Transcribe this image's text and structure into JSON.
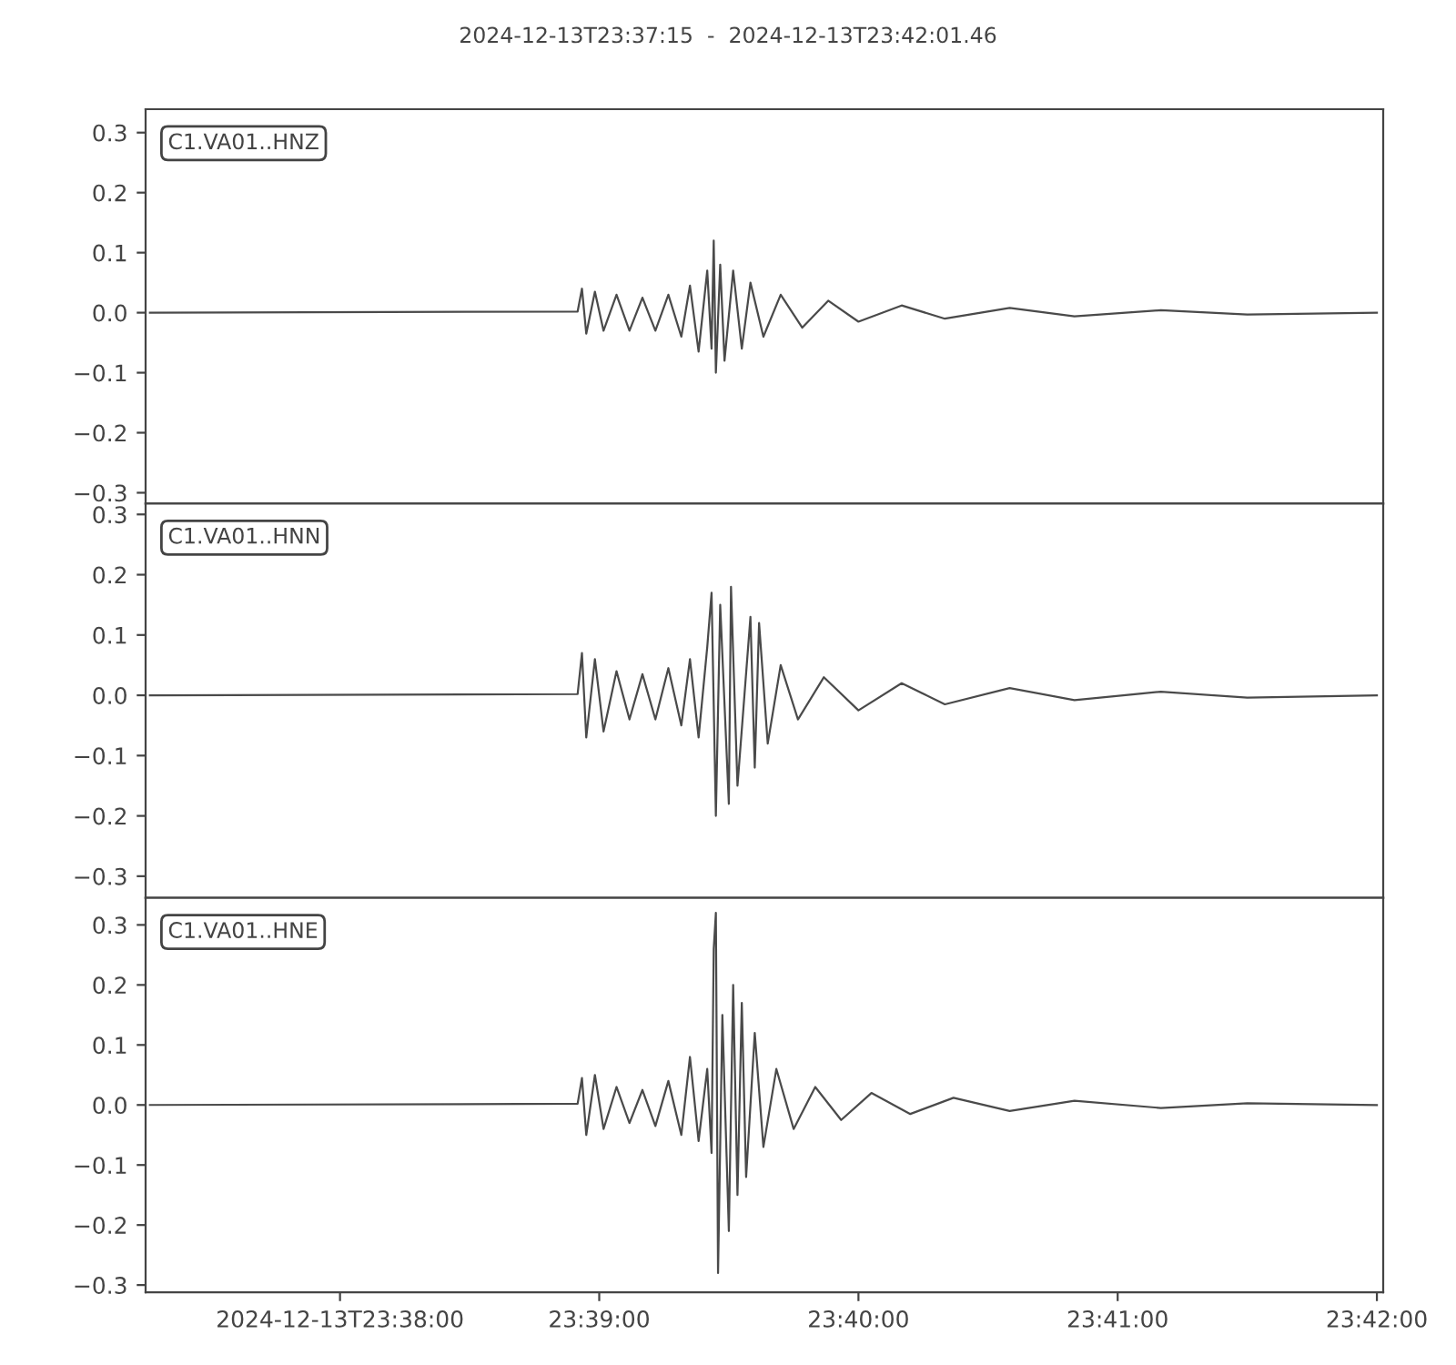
{
  "chart_data": [
    {
      "type": "line",
      "title": "2024-12-13T23:37:15  -  2024-12-13T23:42:01.46",
      "annotations": [
        "C1.VA01..HNZ"
      ],
      "tick_labels": "y",
      "grid": false,
      "legend": false,
      "xlim": [
        "2024-12-13T23:37:15",
        "2024-12-13T23:42:01.46"
      ],
      "ylim": [
        -0.318,
        0.339
      ],
      "yticks": [
        {
          "value": -0.3,
          "label": "−0.3"
        },
        {
          "value": -0.2,
          "label": "−0.2"
        },
        {
          "value": -0.1,
          "label": "−0.1"
        },
        {
          "value": 0,
          "label": "0.0"
        },
        0.1,
        0.2,
        0.3
      ],
      "series": [
        {
          "color": "#4a4a4a",
          "x": [
            "2024-12-13T23:37:16",
            "2024-12-13T23:38:55",
            "2024-12-13T23:38:56",
            "2024-12-13T23:38:57",
            "2024-12-13T23:38:59",
            "2024-12-13T23:39:01",
            "2024-12-13T23:39:04",
            "2024-12-13T23:39:07",
            "2024-12-13T23:39:10",
            "2024-12-13T23:39:13",
            "2024-12-13T23:39:16",
            "2024-12-13T23:39:19",
            "2024-12-13T23:39:21",
            "2024-12-13T23:39:23",
            "2024-12-13T23:39:25",
            "2024-12-13T23:39:26",
            "2024-12-13T23:39:26.5",
            "2024-12-13T23:39:27",
            "2024-12-13T23:39:28",
            "2024-12-13T23:39:29",
            "2024-12-13T23:39:31",
            "2024-12-13T23:39:33",
            "2024-12-13T23:39:35",
            "2024-12-13T23:39:38",
            "2024-12-13T23:39:42",
            "2024-12-13T23:39:47",
            "2024-12-13T23:39:53",
            "2024-12-13T23:40:00",
            "2024-12-13T23:40:10",
            "2024-12-13T23:40:20",
            "2024-12-13T23:40:35",
            "2024-12-13T23:40:50",
            "2024-12-13T23:41:10",
            "2024-12-13T23:41:30",
            "2024-12-13T23:42:00"
          ],
          "values": [
            0.0,
            0.002,
            0.04,
            -0.035,
            0.035,
            -0.03,
            0.03,
            -0.03,
            0.025,
            -0.03,
            0.03,
            -0.04,
            0.045,
            -0.065,
            0.07,
            -0.06,
            0.12,
            -0.1,
            0.08,
            -0.08,
            0.07,
            -0.06,
            0.05,
            -0.04,
            0.03,
            -0.025,
            0.02,
            -0.015,
            0.012,
            -0.01,
            0.008,
            -0.006,
            0.004,
            -0.003,
            0.0
          ]
        }
      ]
    },
    {
      "type": "line",
      "annotations": [
        "C1.VA01..HNN"
      ],
      "tick_labels": "y",
      "grid": false,
      "legend": false,
      "xlim": [
        "2024-12-13T23:37:15",
        "2024-12-13T23:42:01.46"
      ],
      "ylim": [
        -0.336,
        0.318
      ],
      "yticks": [
        {
          "value": -0.3,
          "label": "−0.3"
        },
        {
          "value": -0.2,
          "label": "−0.2"
        },
        {
          "value": -0.1,
          "label": "−0.1"
        },
        {
          "value": 0,
          "label": "0.0"
        },
        0.1,
        0.2,
        0.3
      ],
      "series": [
        {
          "color": "#4a4a4a",
          "x": [
            "2024-12-13T23:37:16",
            "2024-12-13T23:38:55",
            "2024-12-13T23:38:56",
            "2024-12-13T23:38:57",
            "2024-12-13T23:38:59",
            "2024-12-13T23:39:01",
            "2024-12-13T23:39:04",
            "2024-12-13T23:39:07",
            "2024-12-13T23:39:10",
            "2024-12-13T23:39:13",
            "2024-12-13T23:39:16",
            "2024-12-13T23:39:19",
            "2024-12-13T23:39:21",
            "2024-12-13T23:39:23",
            "2024-12-13T23:39:25",
            "2024-12-13T23:39:26",
            "2024-12-13T23:39:27",
            "2024-12-13T23:39:28",
            "2024-12-13T23:39:30",
            "2024-12-13T23:39:30.5",
            "2024-12-13T23:39:32",
            "2024-12-13T23:39:35",
            "2024-12-13T23:39:36",
            "2024-12-13T23:39:37",
            "2024-12-13T23:39:39",
            "2024-12-13T23:39:42",
            "2024-12-13T23:39:46",
            "2024-12-13T23:39:52",
            "2024-12-13T23:40:00",
            "2024-12-13T23:40:10",
            "2024-12-13T23:40:20",
            "2024-12-13T23:40:35",
            "2024-12-13T23:40:50",
            "2024-12-13T23:41:10",
            "2024-12-13T23:41:30",
            "2024-12-13T23:42:00"
          ],
          "values": [
            0.0,
            0.002,
            0.07,
            -0.07,
            0.06,
            -0.06,
            0.04,
            -0.04,
            0.035,
            -0.04,
            0.045,
            -0.05,
            0.06,
            -0.07,
            0.08,
            0.17,
            -0.2,
            0.15,
            -0.18,
            0.18,
            -0.15,
            0.13,
            -0.12,
            0.12,
            -0.08,
            0.05,
            -0.04,
            0.03,
            -0.025,
            0.02,
            -0.015,
            0.012,
            -0.008,
            0.006,
            -0.004,
            0.0
          ]
        }
      ]
    },
    {
      "type": "line",
      "annotations": [
        "C1.VA01..HNE"
      ],
      "grid": false,
      "legend": false,
      "xlim": [
        "2024-12-13T23:37:15",
        "2024-12-13T23:42:01.46"
      ],
      "xticks": [
        {
          "value": "2024-12-13T23:38:00",
          "label": "2024-12-13T23:38:00"
        },
        {
          "value": "2024-12-13T23:39:00",
          "label": "23:39:00"
        },
        {
          "value": "2024-12-13T23:40:00",
          "label": "23:40:00"
        },
        {
          "value": "2024-12-13T23:41:00",
          "label": "23:41:00"
        },
        {
          "value": "2024-12-13T23:42:00",
          "label": "23:42:00"
        }
      ],
      "ylim": [
        -0.312,
        0.345
      ],
      "yticks": [
        {
          "value": -0.3,
          "label": "−0.3"
        },
        {
          "value": -0.2,
          "label": "−0.2"
        },
        {
          "value": -0.1,
          "label": "−0.1"
        },
        {
          "value": 0,
          "label": "0.0"
        },
        0.1,
        0.2,
        0.3
      ],
      "series": [
        {
          "color": "#4a4a4a",
          "x": [
            "2024-12-13T23:37:16",
            "2024-12-13T23:38:55",
            "2024-12-13T23:38:56",
            "2024-12-13T23:38:57",
            "2024-12-13T23:38:59",
            "2024-12-13T23:39:01",
            "2024-12-13T23:39:04",
            "2024-12-13T23:39:07",
            "2024-12-13T23:39:10",
            "2024-12-13T23:39:13",
            "2024-12-13T23:39:16",
            "2024-12-13T23:39:19",
            "2024-12-13T23:39:21",
            "2024-12-13T23:39:23",
            "2024-12-13T23:39:25",
            "2024-12-13T23:39:26",
            "2024-12-13T23:39:26.5",
            "2024-12-13T23:39:27",
            "2024-12-13T23:39:27.5",
            "2024-12-13T23:39:28.5",
            "2024-12-13T23:39:30",
            "2024-12-13T23:39:31",
            "2024-12-13T23:39:32",
            "2024-12-13T23:39:33",
            "2024-12-13T23:39:34",
            "2024-12-13T23:39:36",
            "2024-12-13T23:39:38",
            "2024-12-13T23:39:41",
            "2024-12-13T23:39:45",
            "2024-12-13T23:39:50",
            "2024-12-13T23:39:56",
            "2024-12-13T23:40:03",
            "2024-12-13T23:40:12",
            "2024-12-13T23:40:22",
            "2024-12-13T23:40:35",
            "2024-12-13T23:40:50",
            "2024-12-13T23:41:10",
            "2024-12-13T23:41:30",
            "2024-12-13T23:42:00"
          ],
          "values": [
            0.0,
            0.002,
            0.045,
            -0.05,
            0.05,
            -0.04,
            0.03,
            -0.03,
            0.025,
            -0.035,
            0.04,
            -0.05,
            0.08,
            -0.06,
            0.06,
            -0.08,
            0.26,
            0.32,
            -0.28,
            0.15,
            -0.21,
            0.2,
            -0.15,
            0.17,
            -0.12,
            0.12,
            -0.07,
            0.06,
            -0.04,
            0.03,
            -0.025,
            0.02,
            -0.015,
            0.012,
            -0.01,
            0.007,
            -0.005,
            0.003,
            0.0
          ]
        }
      ]
    }
  ]
}
